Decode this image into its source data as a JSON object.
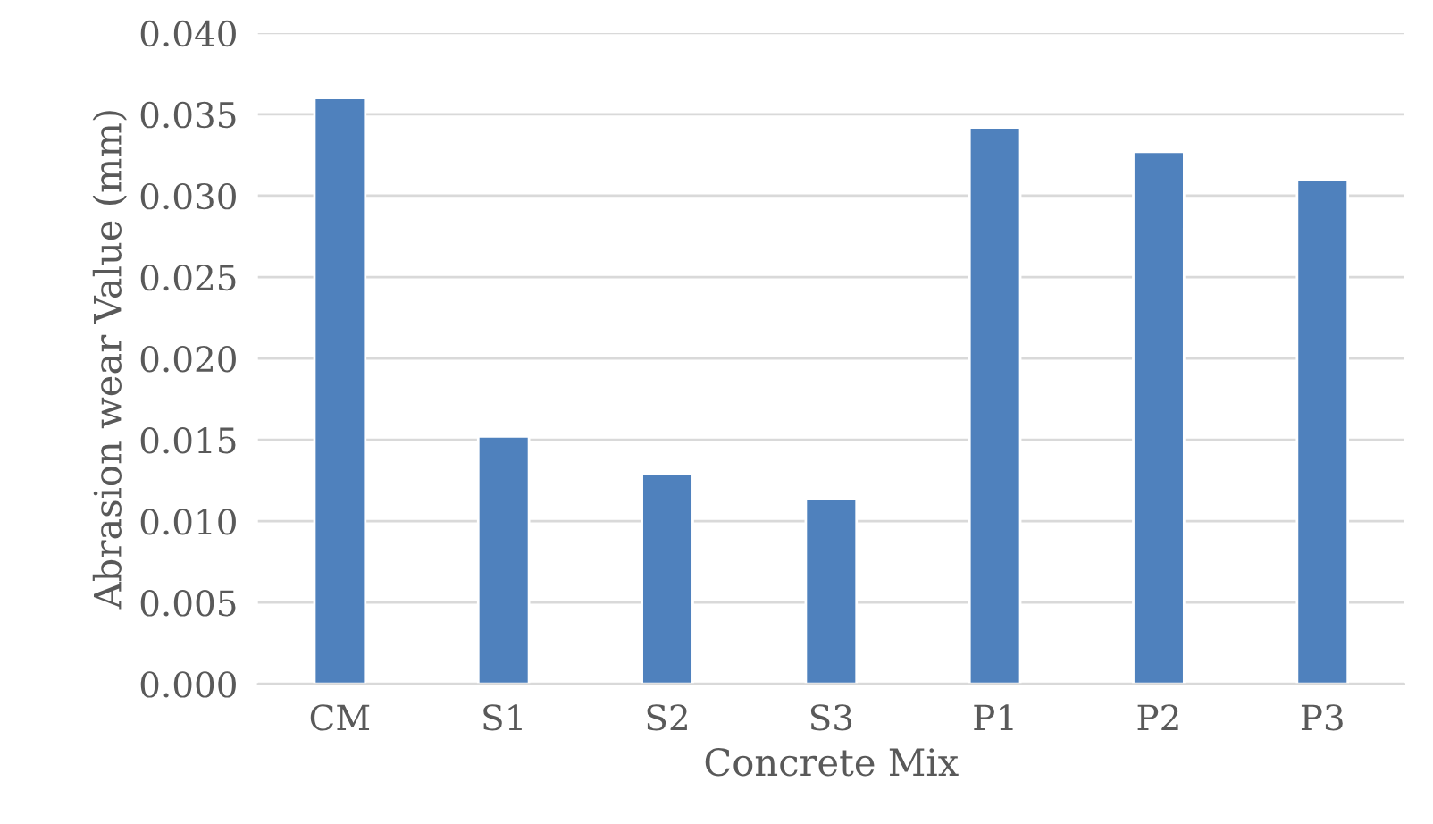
{
  "chart_data": {
    "type": "bar",
    "xlabel": "Concrete Mix",
    "ylabel": "Abrasion wear Value (mm)",
    "categories": [
      "CM",
      "S1",
      "S2",
      "S3",
      "P1",
      "P2",
      "P3"
    ],
    "values": [
      0.036,
      0.0152,
      0.0129,
      0.0114,
      0.0342,
      0.0327,
      0.031
    ],
    "color": "#4f81bd",
    "ylim": [
      0,
      0.04
    ],
    "yticks": [
      {
        "value": 0,
        "label": "0.000"
      },
      {
        "value": 0.005,
        "label": "0.005"
      },
      {
        "value": 0.01,
        "label": "0.010"
      },
      {
        "value": 0.015,
        "label": "0.015"
      },
      {
        "value": 0.02,
        "label": "0.020"
      },
      {
        "value": 0.025,
        "label": "0.025"
      },
      {
        "value": 0.03,
        "label": "0.030"
      },
      {
        "value": 0.035,
        "label": "0.035"
      },
      {
        "value": 0.04,
        "label": "0.040"
      }
    ],
    "grid": "y"
  }
}
